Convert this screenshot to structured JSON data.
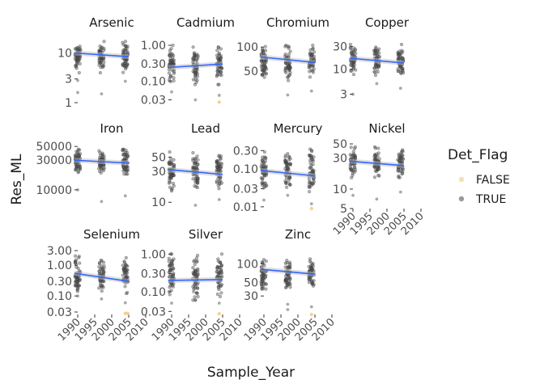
{
  "chart_data": {
    "type": "scatter",
    "xlabel": "Sample_Year",
    "ylabel": "Res_ML",
    "y_scale": "log",
    "x_ticks": [
      1990,
      1995,
      2000,
      2005,
      2010
    ],
    "x_tick_labels": [
      "1990",
      "1995",
      "2000",
      "2005",
      "2010"
    ],
    "sample_years": [
      1990,
      1997,
      2004
    ],
    "grid": "off",
    "legend": {
      "title": "Det_Flag",
      "placement": "right",
      "entries": [
        {
          "label": "FALSE",
          "color": "#f3c87a"
        },
        {
          "label": "TRUE",
          "color": "#555555"
        }
      ]
    },
    "colors": {
      "trend": "#3366ff",
      "ribbon": "#bfbfbf",
      "true_point": "#555555",
      "false_point": "#f3c87a"
    },
    "facets": [
      {
        "name": "Arsenic",
        "ylim": [
          1,
          20
        ],
        "ticks": [
          1,
          3,
          10
        ],
        "tick_labels": [
          "1",
          "3",
          "10"
        ],
        "trend": [
          10,
          8.4
        ],
        "spread": [
          4,
          17
        ],
        "outliers": [
          [
            1990,
            2.8
          ],
          [
            1990,
            1.6
          ],
          [
            1997,
            1.5
          ],
          [
            2004,
            2.7
          ]
        ],
        "false_points": []
      },
      {
        "name": "Cadmium",
        "ylim": [
          0.025,
          1.6
        ],
        "ticks": [
          0.03,
          0.1,
          0.3,
          1.0
        ],
        "tick_labels": [
          "0.03",
          "0.10",
          "0.30",
          "1.00"
        ],
        "trend": [
          0.24,
          0.3
        ],
        "spread": [
          0.08,
          1.0
        ],
        "outliers": [
          [
            1990,
            0.05
          ],
          [
            1997,
            0.03
          ],
          [
            2004,
            0.04
          ]
        ],
        "false_points": [
          [
            2004,
            0.026
          ]
        ]
      },
      {
        "name": "Chromium",
        "ylim": [
          20,
          130
        ],
        "ticks": [
          50,
          100
        ],
        "tick_labels": [
          "50",
          "100"
        ],
        "trend": [
          75,
          64
        ],
        "spread": [
          38,
          105
        ],
        "outliers": [
          [
            1997,
            25
          ],
          [
            2004,
            28
          ]
        ],
        "false_points": []
      },
      {
        "name": "Copper",
        "ylim": [
          2,
          45
        ],
        "ticks": [
          3,
          10,
          30
        ],
        "tick_labels": [
          "3",
          "10",
          "30"
        ],
        "trend": [
          17,
          13.5
        ],
        "spread": [
          7,
          33
        ],
        "outliers": [
          [
            1990,
            3
          ],
          [
            1997,
            5
          ],
          [
            2004,
            4
          ]
        ],
        "false_points": []
      },
      {
        "name": "Iron",
        "ylim": [
          5000,
          55000
        ],
        "ticks": [
          10000,
          30000,
          50000
        ],
        "tick_labels": [
          "10000",
          "30000",
          "50000"
        ],
        "trend": [
          30000,
          27000
        ],
        "spread": [
          18000,
          45000
        ],
        "outliers": [
          [
            1990,
            10000
          ],
          [
            1997,
            6500
          ],
          [
            2004,
            8000
          ]
        ],
        "false_points": []
      },
      {
        "name": "Lead",
        "ylim": [
          8,
          80
        ],
        "ticks": [
          10,
          30,
          50
        ],
        "tick_labels": [
          "10",
          "30",
          "50"
        ],
        "trend": [
          32,
          27
        ],
        "spread": [
          15,
          60
        ],
        "outliers": [
          [
            1997,
            9
          ],
          [
            2004,
            11
          ]
        ],
        "false_points": []
      },
      {
        "name": "Mercury",
        "ylim": [
          0.009,
          0.45
        ],
        "ticks": [
          0.01,
          0.03,
          0.1,
          0.3
        ],
        "tick_labels": [
          "0.01",
          "0.03",
          "0.10",
          "0.30"
        ],
        "trend": [
          0.09,
          0.065
        ],
        "spread": [
          0.025,
          0.35
        ],
        "outliers": [
          [
            1990,
            0.015
          ],
          [
            1997,
            0.02
          ],
          [
            2004,
            0.012
          ]
        ],
        "false_points": [
          [
            2004,
            0.009
          ]
        ]
      },
      {
        "name": "Nickel",
        "ylim": [
          5,
          50
        ],
        "ticks": [
          5,
          10,
          30,
          50
        ],
        "tick_labels": [
          "5",
          "10",
          "30",
          "50"
        ],
        "trend": [
          27,
          23
        ],
        "spread": [
          15,
          45
        ],
        "outliers": [
          [
            1990,
            8
          ],
          [
            1997,
            7
          ],
          [
            2004,
            9
          ]
        ],
        "false_points": []
      },
      {
        "name": "Selenium",
        "ylim": [
          0.025,
          3.2
        ],
        "ticks": [
          0.03,
          0.1,
          0.3,
          1.0,
          3.0
        ],
        "tick_labels": [
          "0.03",
          "0.10",
          "0.30",
          "1.00",
          "3.00"
        ],
        "trend": [
          0.55,
          0.3
        ],
        "spread": [
          0.12,
          2.0
        ],
        "outliers": [
          [
            1990,
            0.1
          ],
          [
            1997,
            0.08
          ],
          [
            2004,
            0.06
          ]
        ],
        "false_points": [
          [
            2004,
            0.027
          ],
          [
            2004,
            0.027
          ]
        ]
      },
      {
        "name": "Silver",
        "ylim": [
          0.025,
          1.3
        ],
        "ticks": [
          0.03,
          0.1,
          0.3,
          1.0
        ],
        "tick_labels": [
          "0.03",
          "0.10",
          "0.30",
          "1.00"
        ],
        "trend": [
          0.2,
          0.21
        ],
        "spread": [
          0.06,
          1.0
        ],
        "outliers": [
          [
            1990,
            0.05
          ],
          [
            1997,
            0.06
          ],
          [
            2004,
            0.05
          ]
        ],
        "false_points": [
          [
            2004,
            0.026
          ]
        ]
      },
      {
        "name": "Zinc",
        "ylim": [
          15,
          170
        ],
        "ticks": [
          30,
          50,
          100
        ],
        "tick_labels": [
          "30",
          "50",
          "100"
        ],
        "trend": [
          82,
          68
        ],
        "spread": [
          35,
          125
        ],
        "outliers": [
          [
            1997,
            18
          ],
          [
            1997,
            22
          ],
          [
            2004,
            20
          ]
        ],
        "false_points": [
          [
            2004,
            15
          ]
        ]
      }
    ]
  }
}
